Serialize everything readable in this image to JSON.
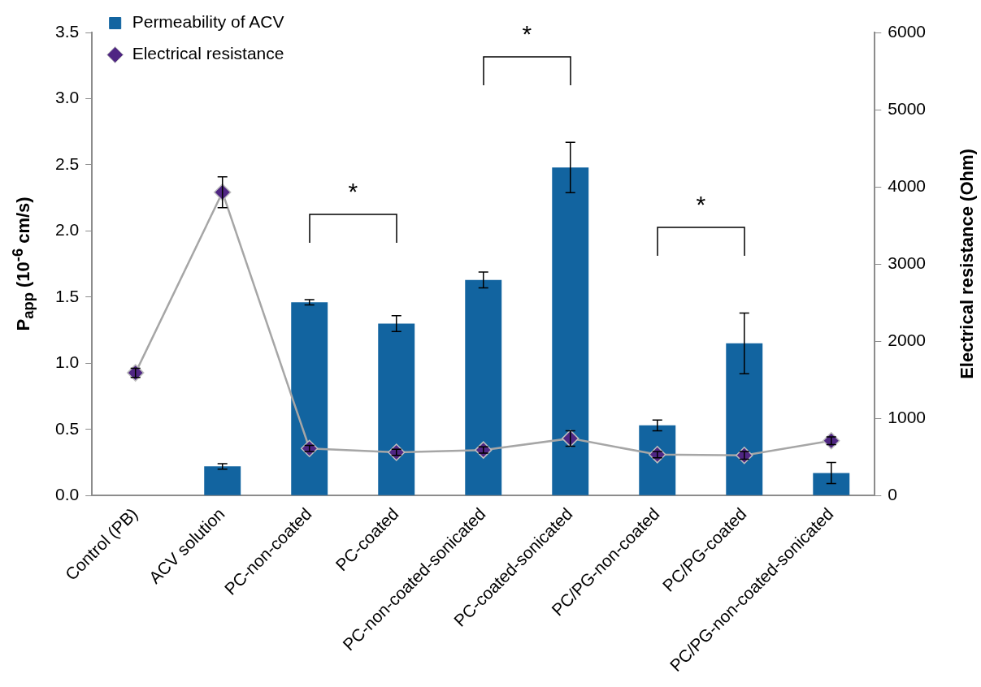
{
  "chart_data": {
    "type": "bar",
    "categories": [
      "Control (PB)",
      "ACV solution",
      "PC-non-coated",
      "PC-coated",
      "PC-non-coated-sonicated",
      "PC-coated-sonicated",
      "PC/PG-non-coated",
      "PC/PG-coated",
      "PC/PG-non-coated-sonicated"
    ],
    "series": [
      {
        "name": "Permeability of ACV",
        "color": "#1264a0",
        "values": [
          null,
          0.22,
          1.46,
          1.3,
          1.63,
          2.48,
          0.53,
          1.15,
          0.17
        ],
        "errors": [
          null,
          0.02,
          0.02,
          0.06,
          0.06,
          0.19,
          0.04,
          0.23,
          0.08
        ]
      },
      {
        "name": "Electrical resistance",
        "type": "line",
        "axis": "y2",
        "color": "#4f2683",
        "marker": "diamond",
        "values": [
          1590,
          3930,
          610,
          560,
          590,
          740,
          530,
          520,
          710
        ],
        "errors": [
          60,
          200,
          40,
          40,
          40,
          100,
          40,
          50,
          50
        ]
      }
    ],
    "ylabel": "P$_{app}$ (10$^{-6}$ cm/s)",
    "y2label": "Electrical resistance (Ohm)",
    "ylim": [
      0,
      3.5
    ],
    "yticks": [
      {
        "value": 0,
        "label": "0.0"
      },
      {
        "value": 0.5,
        "label": "0.5"
      },
      {
        "value": 1,
        "label": "1.0"
      },
      {
        "value": 1.5,
        "label": "1.5"
      },
      {
        "value": 2,
        "label": "2.0"
      },
      {
        "value": 2.5,
        "label": "2.5"
      },
      {
        "value": 3,
        "label": "3.0"
      },
      {
        "value": 3.5,
        "label": "3.5"
      }
    ],
    "y2lim": [
      0,
      6000
    ],
    "y2ticks": [
      0,
      1000,
      2000,
      3000,
      4000,
      5000,
      6000
    ],
    "annotations": [
      "*",
      "*",
      "*"
    ],
    "legend": "top left",
    "grid": false
  }
}
